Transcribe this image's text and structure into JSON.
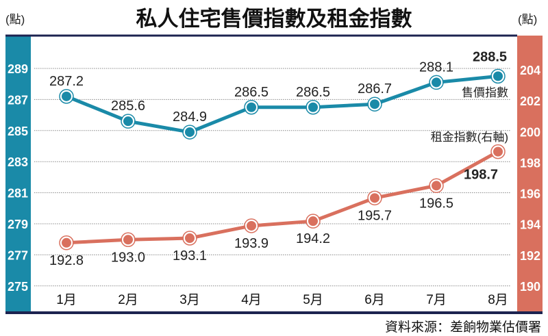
{
  "chart_data": {
    "type": "line",
    "title": "私人住宅售價指數及租金指數",
    "left_unit": "(點)",
    "right_unit": "(點)",
    "categories": [
      "1月",
      "2月",
      "3月",
      "4月",
      "5月",
      "6月",
      "7月",
      "8月"
    ],
    "left_axis": {
      "ticks": [
        289,
        287,
        285,
        283,
        281,
        279,
        277,
        275
      ],
      "range": [
        275,
        289
      ]
    },
    "right_axis": {
      "ticks": [
        204,
        202,
        200,
        198,
        196,
        194,
        192,
        190
      ],
      "range": [
        190,
        204
      ]
    },
    "grid": true,
    "series": [
      {
        "name": "售價指數",
        "axis": "left",
        "color": "#1a8aa8",
        "values": [
          287.2,
          285.6,
          284.9,
          286.5,
          286.5,
          286.7,
          288.1,
          288.5
        ],
        "labels": [
          "287.2",
          "285.6",
          "284.9",
          "286.5",
          "286.5",
          "286.7",
          "288.1",
          "288.5"
        ]
      },
      {
        "name": "租金指數(右軸)",
        "axis": "right",
        "color": "#d9705e",
        "values": [
          192.8,
          193.0,
          193.1,
          193.9,
          194.2,
          195.7,
          196.5,
          198.7
        ],
        "labels": [
          "192.8",
          "193.0",
          "193.1",
          "193.9",
          "194.2",
          "195.7",
          "196.5",
          "198.7"
        ]
      }
    ],
    "source": "資料來源：差餉物業估價署",
    "colors": {
      "left_bar": "#1a8aa8",
      "right_bar": "#d9705e",
      "frame": "#1c2350"
    }
  }
}
